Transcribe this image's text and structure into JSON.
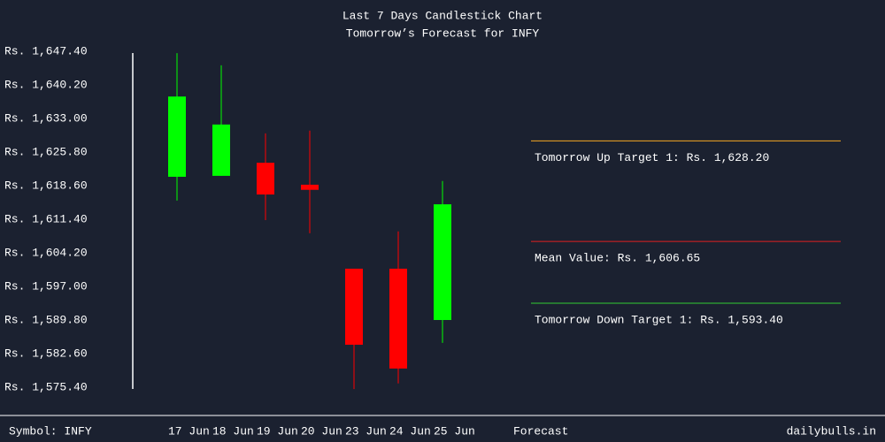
{
  "chart_data": {
    "type": "candlestick",
    "title": "Last 7 Days Candlestick Chart",
    "subtitle": "Tomorrow’s Forecast for INFY",
    "categories": [
      "17 Jun",
      "18 Jun",
      "19 Jun",
      "20 Jun",
      "23 Jun",
      "24 Jun",
      "25 Jun"
    ],
    "open": [
      1620.5,
      1620.7,
      1623.5,
      1618.8,
      1600.8,
      1600.8,
      1589.8
    ],
    "high": [
      1647.0,
      1644.4,
      1629.8,
      1630.4,
      1600.8,
      1608.8,
      1619.6
    ],
    "low": [
      1615.4,
      1620.7,
      1611.2,
      1608.4,
      1575.0,
      1576.2,
      1584.9
    ],
    "close": [
      1637.7,
      1631.7,
      1616.7,
      1617.7,
      1584.5,
      1579.4,
      1614.6
    ],
    "up_color": "#00ff00",
    "down_color": "#ff0000",
    "ylim": [
      1575.4,
      1647.4
    ],
    "yticks": [
      {
        "value": 1647.4,
        "label": "Rs. 1,647.40"
      },
      {
        "value": 1640.2,
        "label": "Rs. 1,640.20"
      },
      {
        "value": 1633.0,
        "label": "Rs. 1,633.00"
      },
      {
        "value": 1625.8,
        "label": "Rs. 1,625.80"
      },
      {
        "value": 1618.6,
        "label": "Rs. 1,618.60"
      },
      {
        "value": 1611.4,
        "label": "Rs. 1,611.40"
      },
      {
        "value": 1604.2,
        "label": "Rs. 1,604.20"
      },
      {
        "value": 1597.0,
        "label": "Rs. 1,597.00"
      },
      {
        "value": 1589.8,
        "label": "Rs. 1,589.80"
      },
      {
        "value": 1582.6,
        "label": "Rs. 1,582.60"
      },
      {
        "value": 1575.4,
        "label": "Rs. 1,575.40"
      }
    ],
    "forecast": [
      {
        "label": "Tomorrow Up Target 1: Rs. 1,628.20",
        "value": 1628.2,
        "color": "#f5a623"
      },
      {
        "label": "Mean Value: Rs. 1,606.65",
        "value": 1606.65,
        "color": "#e02020"
      },
      {
        "label": "Tomorrow Down Target 1: Rs. 1,593.40",
        "value": 1593.4,
        "color": "#32cd32"
      }
    ],
    "forecast_label": "Forecast",
    "symbol": "Symbol: INFY",
    "source": "dailybulls.in"
  }
}
